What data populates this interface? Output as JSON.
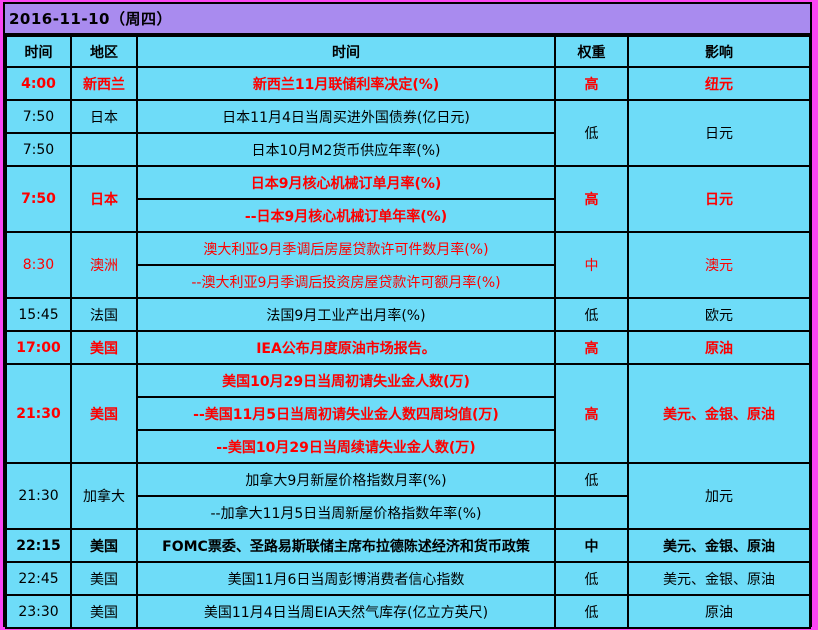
{
  "title": "2016-11-10（周四）",
  "colors": {
    "frame_magenta": "#fa46f2",
    "title_purple": "#a98bef",
    "cell_cyan": "#6edcf8",
    "grid_black": "#000000",
    "highlight_red": "#fe0000"
  },
  "header": {
    "time": "时间",
    "region": "地区",
    "event": "时间",
    "weight": "权重",
    "impact": "影响"
  },
  "rows": [
    {
      "time": "4:00",
      "region": "新西兰",
      "event": "新西兰11月联储利率决定(%)",
      "weight": "高",
      "impact": "纽元"
    },
    {
      "time": "7:50",
      "region": "日本",
      "event": "日本11月4日当周买进外国债券(亿日元)",
      "weight": "低",
      "impact": "日元"
    },
    {
      "time": "7:50",
      "region": "",
      "event": "日本10月M2货币供应年率(%)"
    },
    {
      "time": "7:50",
      "region": "日本",
      "event": "日本9月核心机械订单月率(%)",
      "weight": "高",
      "impact": "日元"
    },
    {
      "event": "--日本9月核心机械订单年率(%)"
    },
    {
      "time": "8:30",
      "region": "澳洲",
      "event": "澳大利亚9月季调后房屋贷款许可件数月率(%)",
      "weight": "中",
      "impact": "澳元"
    },
    {
      "event": "--澳大利亚9月季调后投资房屋贷款许可额月率(%)"
    },
    {
      "time": "15:45",
      "region": "法国",
      "event": "法国9月工业产出月率(%)",
      "weight": "低",
      "impact": "欧元"
    },
    {
      "time": "17:00",
      "region": "美国",
      "event": "IEA公布月度原油市场报告。",
      "weight": "高",
      "impact": "原油"
    },
    {
      "time": "21:30",
      "region": "美国",
      "event": "美国10月29日当周初请失业金人数(万)",
      "weight": "高",
      "impact": "美元、金银、原油"
    },
    {
      "event": "--美国11月5日当周初请失业金人数四周均值(万)"
    },
    {
      "event": "--美国10月29日当周续请失业金人数(万)"
    },
    {
      "time": "21:30",
      "region": "加拿大",
      "event": "加拿大9月新屋价格指数月率(%)",
      "weight": "低",
      "impact": "加元"
    },
    {
      "event": "--加拿大11月5日当周新屋价格指数年率(%)",
      "weight": ""
    },
    {
      "time": "22:15",
      "region": "美国",
      "event": "FOMC票委、圣路易斯联储主席布拉德陈述经济和货币政策",
      "weight": "中",
      "impact": "美元、金银、原油"
    },
    {
      "time": "22:45",
      "region": "美国",
      "event": "美国11月6日当周彭博消费者信心指数",
      "weight": "低",
      "impact": "美元、金银、原油"
    },
    {
      "time": "23:30",
      "region": "美国",
      "event": "美国11月4日当周EIA天然气库存(亿立方英尺)",
      "weight": "低",
      "impact": "原油"
    }
  ]
}
